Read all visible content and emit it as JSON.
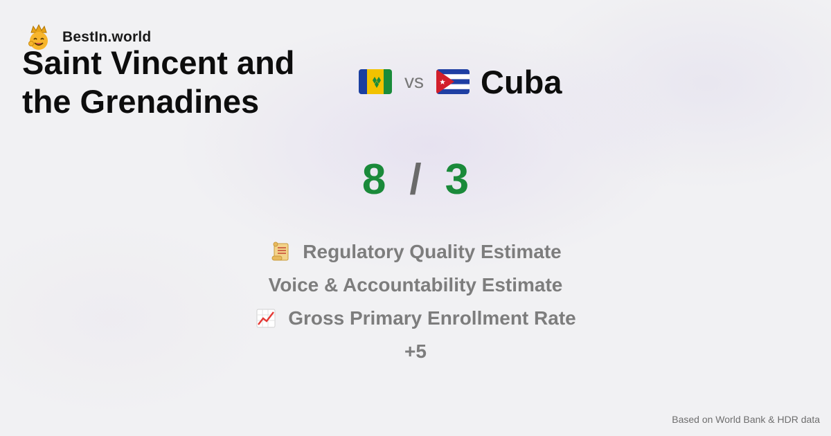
{
  "brand": {
    "name": "BestIn.world",
    "logo_icon": "crowned-smiley-icon"
  },
  "comparison": {
    "country_a": "Saint Vincent and the Grenadines",
    "vs_label": "vs",
    "country_b": "Cuba",
    "flag_a": "saint-vincent-flag-icon",
    "flag_b": "cuba-flag-icon"
  },
  "score": {
    "a": "8",
    "separator": "/",
    "b": "3"
  },
  "metrics": [
    {
      "icon": "scroll-icon",
      "label": "Regulatory Quality Estimate"
    },
    {
      "icon": "",
      "label": "Voice & Accountability Estimate"
    },
    {
      "icon": "chart-increasing-icon",
      "label": "Gross Primary Enrollment Rate"
    }
  ],
  "more_label": "+5",
  "footer": {
    "source": "Based on World Bank & HDR data"
  },
  "colors": {
    "score": "#1a8a3a",
    "muted": "#7d7d7d",
    "text": "#0d0d0d"
  }
}
